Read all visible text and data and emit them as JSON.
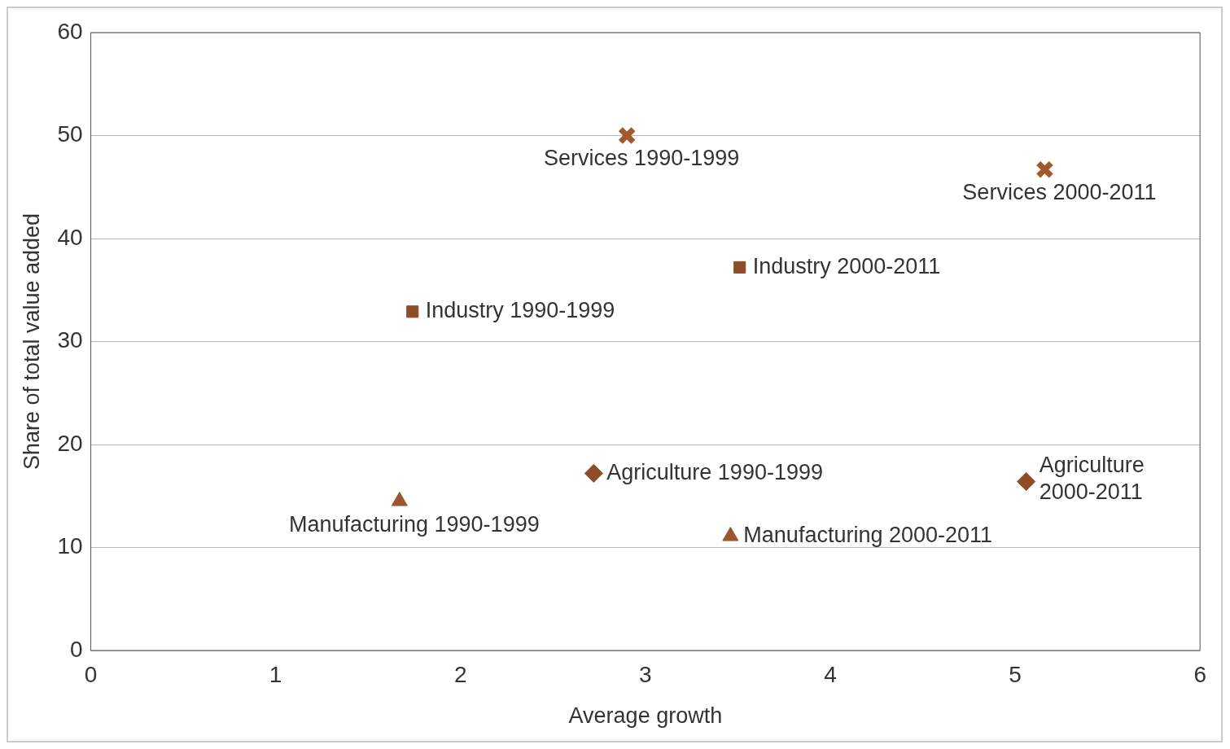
{
  "chart_data": {
    "type": "scatter",
    "xlabel": "Average growth",
    "ylabel": "Share of total value added",
    "xlim": [
      0,
      6
    ],
    "xticks": [
      0,
      1,
      2,
      3,
      4,
      5,
      6
    ],
    "ylim": [
      0,
      60
    ],
    "yticks": [
      0,
      10,
      20,
      30,
      40,
      50,
      60
    ],
    "grid": "y",
    "legend": false,
    "series": [
      {
        "name": "Services 1990-1999",
        "color": "#a0582c",
        "marker": "cross",
        "x": [
          2.9
        ],
        "values": [
          50.0
        ]
      },
      {
        "name": "Services 2000-2011",
        "color": "#a0582c",
        "marker": "cross",
        "x": [
          5.16
        ],
        "values": [
          46.7
        ]
      },
      {
        "name": "Industry 2000-2011",
        "color": "#8e4c28",
        "marker": "square",
        "x": [
          3.51
        ],
        "values": [
          37.2
        ]
      },
      {
        "name": "Industry 1990-1999",
        "color": "#8e4c28",
        "marker": "square",
        "x": [
          1.74
        ],
        "values": [
          32.9
        ]
      },
      {
        "name": "Agriculture 1990-1999",
        "color": "#8e4c28",
        "marker": "diamond",
        "x": [
          2.72
        ],
        "values": [
          17.2
        ]
      },
      {
        "name": "Agriculture 2000-2011",
        "color": "#8e4c28",
        "marker": "diamond",
        "x": [
          5.06
        ],
        "values": [
          16.4
        ]
      },
      {
        "name": "Manufacturing 1990-1999",
        "color": "#9a5630",
        "marker": "triangle",
        "x": [
          1.67
        ],
        "values": [
          14.5
        ]
      },
      {
        "name": "Manufacturing 2000-2011",
        "color": "#9a5630",
        "marker": "triangle",
        "x": [
          3.46
        ],
        "values": [
          11.1
        ]
      }
    ]
  }
}
